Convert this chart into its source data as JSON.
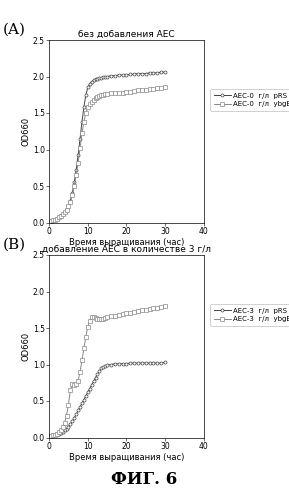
{
  "panel_A_title": "без добавления АЕС",
  "panel_B_title": "добавление АЕС в количестве 3 г/л",
  "figure_label": "ФИГ. 6",
  "xlabel": "Время выращивания (час)",
  "ylabel": "OD660",
  "xlim": [
    0,
    40
  ],
  "ylim": [
    0,
    2.5
  ],
  "xticks": [
    0,
    10,
    20,
    30,
    40
  ],
  "yticks": [
    0,
    0.5,
    1.0,
    1.5,
    2.0,
    2.5
  ],
  "legend_A": [
    "AEC-0  г/л  pRS",
    "AEC-0  г/л  ybgE"
  ],
  "legend_B": [
    "AEC-3  г/л  pRS",
    "AEC-3  г/л  ybgE"
  ],
  "panel_A_pRS_x": [
    0,
    0.5,
    1,
    1.5,
    2,
    2.5,
    3,
    3.5,
    4,
    4.5,
    5,
    5.5,
    6,
    6.5,
    7,
    7.5,
    8,
    8.5,
    9,
    9.5,
    10,
    10.5,
    11,
    11.5,
    12,
    12.5,
    13,
    13.5,
    14,
    14.5,
    15,
    16,
    17,
    18,
    19,
    20,
    21,
    22,
    23,
    24,
    25,
    26,
    27,
    28,
    29,
    30
  ],
  "panel_A_pRS_y": [
    0,
    0.02,
    0.03,
    0.04,
    0.05,
    0.07,
    0.09,
    0.12,
    0.15,
    0.18,
    0.23,
    0.3,
    0.4,
    0.55,
    0.72,
    0.92,
    1.15,
    1.38,
    1.58,
    1.75,
    1.85,
    1.9,
    1.93,
    1.95,
    1.96,
    1.97,
    1.98,
    1.98,
    1.99,
    2.0,
    2.0,
    2.01,
    2.01,
    2.02,
    2.02,
    2.02,
    2.03,
    2.03,
    2.04,
    2.04,
    2.04,
    2.05,
    2.05,
    2.05,
    2.06,
    2.06
  ],
  "panel_A_ybgE_x": [
    0,
    0.5,
    1,
    1.5,
    2,
    2.5,
    3,
    3.5,
    4,
    4.5,
    5,
    5.5,
    6,
    6.5,
    7,
    7.5,
    8,
    8.5,
    9,
    9.5,
    10,
    10.5,
    11,
    11.5,
    12,
    12.5,
    13,
    13.5,
    14,
    14.5,
    15,
    16,
    17,
    18,
    19,
    20,
    21,
    22,
    23,
    24,
    25,
    26,
    27,
    28,
    29,
    30
  ],
  "panel_A_ybgE_y": [
    0,
    0.02,
    0.03,
    0.04,
    0.05,
    0.07,
    0.09,
    0.11,
    0.14,
    0.17,
    0.22,
    0.28,
    0.37,
    0.5,
    0.65,
    0.82,
    1.02,
    1.22,
    1.38,
    1.5,
    1.58,
    1.62,
    1.65,
    1.68,
    1.7,
    1.72,
    1.73,
    1.74,
    1.75,
    1.76,
    1.76,
    1.77,
    1.77,
    1.78,
    1.78,
    1.79,
    1.79,
    1.8,
    1.81,
    1.82,
    1.82,
    1.83,
    1.83,
    1.84,
    1.84,
    1.85
  ],
  "panel_B_pRS_x": [
    0,
    0.5,
    1,
    1.5,
    2,
    2.5,
    3,
    3.5,
    4,
    4.5,
    5,
    5.5,
    6,
    6.5,
    7,
    7.5,
    8,
    8.5,
    9,
    9.5,
    10,
    10.5,
    11,
    11.5,
    12,
    12.5,
    13,
    13.5,
    14,
    14.5,
    15,
    16,
    17,
    18,
    19,
    20,
    21,
    22,
    23,
    24,
    25,
    26,
    27,
    28,
    29,
    30
  ],
  "panel_B_pRS_y": [
    0,
    0.02,
    0.03,
    0.03,
    0.04,
    0.05,
    0.06,
    0.08,
    0.1,
    0.12,
    0.15,
    0.18,
    0.22,
    0.27,
    0.32,
    0.37,
    0.42,
    0.47,
    0.52,
    0.57,
    0.62,
    0.67,
    0.72,
    0.77,
    0.82,
    0.87,
    0.91,
    0.95,
    0.97,
    0.98,
    0.99,
    1.0,
    1.01,
    1.01,
    1.01,
    1.01,
    1.02,
    1.02,
    1.02,
    1.02,
    1.02,
    1.02,
    1.02,
    1.02,
    1.02,
    1.03
  ],
  "panel_B_ybgE_x": [
    0,
    0.5,
    1,
    1.5,
    2,
    2.5,
    3,
    3.5,
    4,
    4.5,
    5,
    5.5,
    6,
    6.5,
    7,
    7.5,
    8,
    8.5,
    9,
    9.5,
    10,
    10.5,
    11,
    11.5,
    12,
    12.5,
    13,
    13.5,
    14,
    14.5,
    15,
    16,
    17,
    18,
    19,
    20,
    21,
    22,
    23,
    24,
    25,
    26,
    27,
    28,
    29,
    30
  ],
  "panel_B_ybgE_y": [
    0,
    0.02,
    0.03,
    0.04,
    0.05,
    0.07,
    0.1,
    0.15,
    0.2,
    0.3,
    0.45,
    0.65,
    0.73,
    0.72,
    0.73,
    0.78,
    0.9,
    1.06,
    1.22,
    1.38,
    1.52,
    1.6,
    1.65,
    1.65,
    1.64,
    1.63,
    1.62,
    1.62,
    1.63,
    1.64,
    1.65,
    1.66,
    1.67,
    1.68,
    1.69,
    1.7,
    1.71,
    1.72,
    1.73,
    1.74,
    1.75,
    1.76,
    1.77,
    1.78,
    1.79,
    1.8
  ],
  "line_color_pRS": "#444444",
  "line_color_ybgE": "#888888",
  "marker_pRS": "o",
  "marker_ybgE": "s",
  "background_color": "#ffffff",
  "fontsize_title": 6.5,
  "fontsize_label": 6,
  "fontsize_tick": 5.5,
  "fontsize_legend": 5,
  "fontsize_panel_label": 11,
  "fontsize_fig_label": 12
}
